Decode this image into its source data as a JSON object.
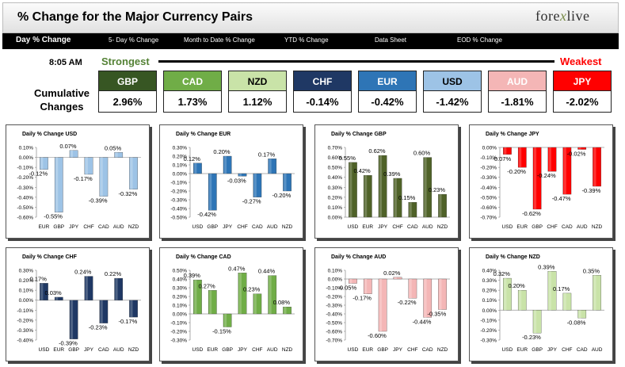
{
  "title": "% Change for the Major Currency Pairs",
  "logo": {
    "prefix": "fore",
    "x": "x",
    "suffix": "live",
    "tagline": "Forex Live"
  },
  "nav": [
    "Day % Change",
    "5- Day % Change",
    "Month to Date % Change",
    "YTD % Change",
    "Data Sheet",
    "EOD % Change"
  ],
  "time": "8:05 AM",
  "strongest": "Strongest",
  "weakest": "Weakest",
  "cumulative_label_1": "Cumulative",
  "cumulative_label_2": "Changes",
  "cumulative": [
    {
      "currency": "GBP",
      "value": "2.96%",
      "color": "#375623",
      "text": "#ffffff",
      "valcolor": "#000000"
    },
    {
      "currency": "CAD",
      "value": "1.73%",
      "color": "#70ad47",
      "text": "#ffffff",
      "valcolor": "#000000"
    },
    {
      "currency": "NZD",
      "value": "1.12%",
      "color": "#c9e3a8",
      "text": "#000000",
      "valcolor": "#000000"
    },
    {
      "currency": "CHF",
      "value": "-0.14%",
      "color": "#1f3864",
      "text": "#ffffff",
      "valcolor": "#000000"
    },
    {
      "currency": "EUR",
      "value": "-0.42%",
      "color": "#2e75b6",
      "text": "#ffffff",
      "valcolor": "#000000"
    },
    {
      "currency": "USD",
      "value": "-1.42%",
      "color": "#9dc3e6",
      "text": "#000000",
      "valcolor": "#000000"
    },
    {
      "currency": "AUD",
      "value": "-1.81%",
      "color": "#f4b6b6",
      "text": "#ffffff",
      "valcolor": "#000000"
    },
    {
      "currency": "JPY",
      "value": "-2.02%",
      "color": "#ff0000",
      "text": "#ffffff",
      "valcolor": "#000000"
    }
  ],
  "chart_data": [
    {
      "type": "bar",
      "title": "Daily % Change USD",
      "categories": [
        "EUR",
        "GBP",
        "JPY",
        "CHF",
        "CAD",
        "AUD",
        "NZD"
      ],
      "values": [
        -0.12,
        -0.55,
        0.07,
        -0.17,
        -0.39,
        0.05,
        -0.32
      ],
      "labels": [
        "-0.12%",
        "-0.55%",
        "0.07%",
        "-0.17%",
        "-0.39%",
        "0.05%",
        "-0.32%"
      ],
      "ylim": [
        -0.6,
        0.1
      ],
      "ticks": [
        "0.10%",
        "0.00%",
        "-0.10%",
        "-0.20%",
        "-0.30%",
        "-0.40%",
        "-0.50%",
        "-0.60%"
      ],
      "color": "#9dc3e6"
    },
    {
      "type": "bar",
      "title": "Daily % Change EUR",
      "categories": [
        "USD",
        "GBP",
        "JPY",
        "CHF",
        "CAD",
        "AUD",
        "NZD"
      ],
      "values": [
        0.12,
        -0.42,
        0.2,
        -0.03,
        -0.27,
        0.17,
        -0.2
      ],
      "labels": [
        "0.12%",
        "-0.42%",
        "0.20%",
        "-0.03%",
        "-0.27%",
        "0.17%",
        "-0.20%"
      ],
      "ylim": [
        -0.5,
        0.3
      ],
      "ticks": [
        "0.30%",
        "0.20%",
        "0.10%",
        "0.00%",
        "-0.10%",
        "-0.20%",
        "-0.30%",
        "-0.40%",
        "-0.50%"
      ],
      "color": "#2e75b6"
    },
    {
      "type": "bar",
      "title": "Daily % Change GBP",
      "categories": [
        "USD",
        "EUR",
        "JPY",
        "CHF",
        "CAD",
        "AUD",
        "NZD"
      ],
      "values": [
        0.55,
        0.42,
        0.62,
        0.39,
        0.15,
        0.6,
        0.23
      ],
      "labels": [
        "0.55%",
        "0.42%",
        "0.62%",
        "0.39%",
        "0.15%",
        "0.60%",
        "0.23%"
      ],
      "ylim": [
        0,
        0.7
      ],
      "ticks": [
        "0.70%",
        "0.60%",
        "0.50%",
        "0.40%",
        "0.30%",
        "0.20%",
        "0.10%",
        "0.00%"
      ],
      "color": "#4f6228"
    },
    {
      "type": "bar",
      "title": "Daily % Change JPY",
      "categories": [
        "USD",
        "EUR",
        "GBP",
        "CHF",
        "CAD",
        "AUD",
        "NZD"
      ],
      "values": [
        -0.07,
        -0.2,
        -0.62,
        -0.24,
        -0.47,
        -0.02,
        -0.39
      ],
      "labels": [
        "-0.07%",
        "-0.20%",
        "-0.62%",
        "-0.24%",
        "-0.47%",
        "-0.02%",
        "-0.39%"
      ],
      "ylim": [
        -0.7,
        0
      ],
      "ticks": [
        "0.00%",
        "-0.10%",
        "-0.20%",
        "-0.30%",
        "-0.40%",
        "-0.50%",
        "-0.60%",
        "-0.70%"
      ],
      "color": "#ff0000"
    },
    {
      "type": "bar",
      "title": "Daily % Change CHF",
      "categories": [
        "USD",
        "EUR",
        "GBP",
        "JPY",
        "CAD",
        "AUD",
        "NZD"
      ],
      "values": [
        0.17,
        0.03,
        -0.39,
        0.24,
        -0.23,
        0.22,
        -0.17
      ],
      "labels": [
        "0.17%",
        "0.03%",
        "-0.39%",
        "0.24%",
        "-0.23%",
        "0.22%",
        "-0.17%"
      ],
      "ylim": [
        -0.4,
        0.3
      ],
      "ticks": [
        "0.30%",
        "0.20%",
        "0.10%",
        "0.00%",
        "-0.10%",
        "-0.20%",
        "-0.30%",
        "-0.40%"
      ],
      "color": "#1f3864"
    },
    {
      "type": "bar",
      "title": "Daily % Change CAD",
      "categories": [
        "USD",
        "EUR",
        "GBP",
        "JPY",
        "CHF",
        "AUD",
        "NZD"
      ],
      "values": [
        0.39,
        0.27,
        -0.15,
        0.47,
        0.23,
        0.44,
        0.08
      ],
      "labels": [
        "0.39%",
        "0.27%",
        "-0.15%",
        "0.47%",
        "0.23%",
        "0.44%",
        "0.08%"
      ],
      "ylim": [
        -0.3,
        0.5
      ],
      "ticks": [
        "0.50%",
        "0.40%",
        "0.30%",
        "0.20%",
        "0.10%",
        "0.00%",
        "-0.10%",
        "-0.20%",
        "-0.30%"
      ],
      "color": "#70ad47"
    },
    {
      "type": "bar",
      "title": "Daily % Change AUD",
      "categories": [
        "USD",
        "EUR",
        "GBP",
        "JPY",
        "CHF",
        "CAD",
        "NZD"
      ],
      "values": [
        -0.05,
        -0.17,
        -0.6,
        0.02,
        -0.22,
        -0.44,
        -0.35
      ],
      "labels": [
        "-0.05%",
        "-0.17%",
        "-0.60%",
        "0.02%",
        "-0.22%",
        "-0.44%",
        "-0.35%"
      ],
      "ylim": [
        -0.7,
        0.1
      ],
      "ticks": [
        "0.10%",
        "0.00%",
        "-0.10%",
        "-0.20%",
        "-0.30%",
        "-0.40%",
        "-0.50%",
        "-0.60%",
        "-0.70%"
      ],
      "color": "#f4b6b6"
    },
    {
      "type": "bar",
      "title": "Daily % Change NZD",
      "categories": [
        "USD",
        "EUR",
        "GBP",
        "JPY",
        "CHF",
        "CAD",
        "AUD"
      ],
      "values": [
        0.32,
        0.2,
        -0.23,
        0.39,
        0.17,
        -0.08,
        0.35
      ],
      "labels": [
        "0.32%",
        "0.20%",
        "-0.23%",
        "0.39%",
        "0.17%",
        "-0.08%",
        "0.35%"
      ],
      "ylim": [
        -0.3,
        0.4
      ],
      "ticks": [
        "0.40%",
        "0.30%",
        "0.20%",
        "0.10%",
        "0.00%",
        "-0.10%",
        "-0.20%",
        "-0.30%"
      ],
      "color": "#c9e3a8"
    }
  ]
}
